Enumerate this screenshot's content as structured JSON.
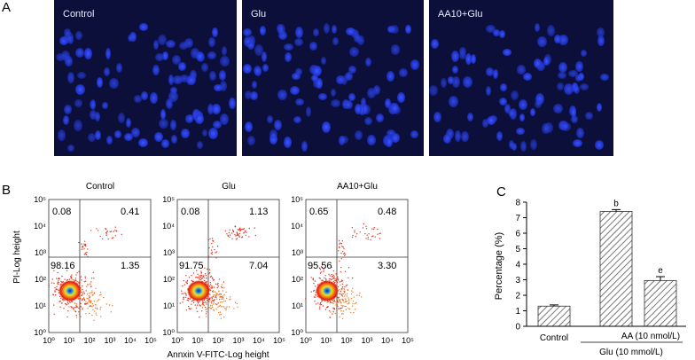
{
  "panels": {
    "a": "A",
    "b": "B",
    "c": "C"
  },
  "micrographs": [
    {
      "label": "Control"
    },
    {
      "label": "Glu"
    },
    {
      "label": "AA10+Glu"
    }
  ],
  "flow": {
    "ylabel": "PI-Log height",
    "xlabel": "Annxin V-FITC-Log height",
    "ticks": [
      "10⁰",
      "10¹",
      "10²",
      "10³",
      "10⁴",
      "10⁵"
    ],
    "plots": [
      {
        "title": "Control",
        "q": [
          "0.08",
          "0.41",
          "98.16",
          "1.35"
        ]
      },
      {
        "title": "Glu",
        "q": [
          "0.08",
          "1.13",
          "91.75",
          "7.04"
        ]
      },
      {
        "title": "AA10+Glu",
        "q": [
          "0.65",
          "0.48",
          "95.56",
          "3.30"
        ]
      }
    ]
  },
  "chart_data": {
    "type": "bar",
    "categories": [
      "Control",
      "Glu",
      "AA+Glu"
    ],
    "values": [
      1.3,
      7.4,
      2.95
    ],
    "errors": [
      0.08,
      0.12,
      0.25
    ],
    "ylabel": "Percentage (%)",
    "ylim": [
      0,
      8
    ],
    "yticks": [
      "0",
      "1",
      "2",
      "3",
      "4",
      "5",
      "6",
      "7",
      "8"
    ],
    "annotations": [
      "",
      "b",
      "e"
    ],
    "x_tick_label": "Control",
    "group_labels": {
      "aa": "AA (10 nmol/L)",
      "glu": "Glu (10 mmol/L)"
    }
  }
}
